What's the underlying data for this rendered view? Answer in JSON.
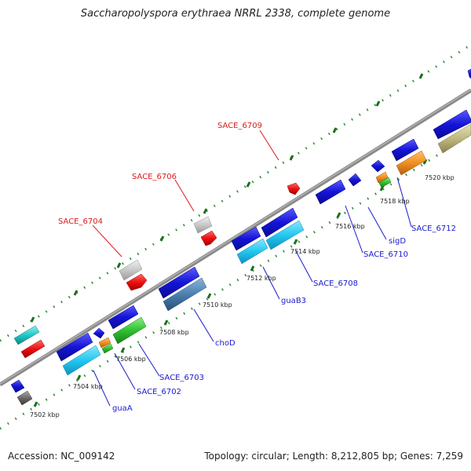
{
  "title": "Saccharopolyspora erythraea NRRL 2338, complete genome",
  "footer": {
    "accession": "Accession: NC_009142",
    "topology": "Topology: circular; Length: 8,212,805 bp; Genes: 7,259"
  },
  "colors": {
    "backbone": "#808080",
    "tick_dots": "#2e8b2e",
    "label_red": "#e0181a",
    "label_blue": "#1a1ad0",
    "gene_blue": "#1414d8",
    "gene_cyan": "#22c8f0",
    "gene_red": "#ee1010",
    "gene_grey": "#c8c8c8",
    "gene_green": "#30c030",
    "gene_teal": "#20c8c8",
    "gene_orange": "#f09020",
    "gene_steel": "#4a7fb0",
    "gene_khaki": "#c0b880",
    "gene_darkgrey": "#6a6a6a"
  },
  "scale_ticks": [
    "7502 kbp",
    "7504 kbp",
    "7506 kbp",
    "7508 kbp",
    "7510 kbp",
    "7512 kbp",
    "7514 kbp",
    "7516 kbp",
    "7518 kbp",
    "7520 kbp"
  ],
  "labels_top": [
    "SACE_6704",
    "SACE_6706",
    "SACE_6709"
  ],
  "labels_bottom": [
    "guaA",
    "SACE_6702",
    "SACE_6703",
    "choD",
    "guaB3",
    "SACE_6708",
    "SACE_6710",
    "sigD",
    "SACE_6712"
  ]
}
